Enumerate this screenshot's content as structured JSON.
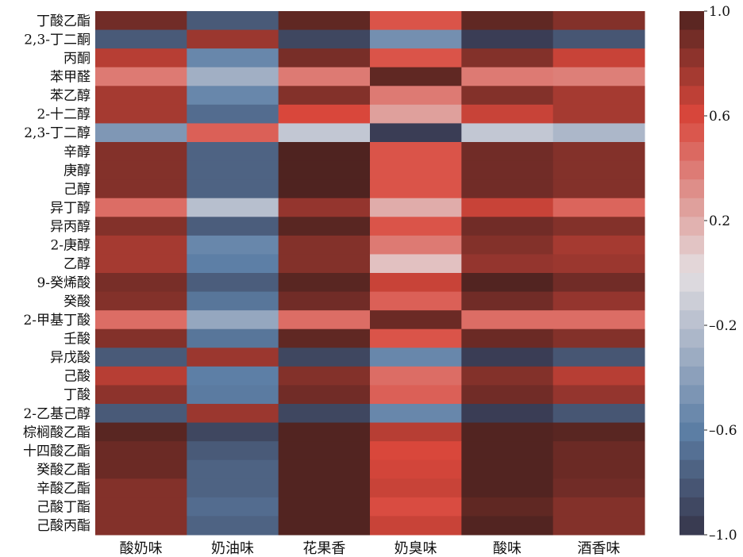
{
  "chart_data": {
    "type": "heatmap",
    "rows": [
      "丁酸乙酯",
      "2,3-丁二酮",
      "丙酮",
      "苯甲醛",
      "苯乙醇",
      "2-十二醇",
      "2,3-丁二醇",
      "辛醇",
      "庚醇",
      "己醇",
      "异丁醇",
      "异丙醇",
      "2-庚醇",
      "乙醇",
      "9-癸烯酸",
      "癸酸",
      "2-甲基丁酸",
      "壬酸",
      "异戊酸",
      "己酸",
      "丁酸",
      "2-乙基己醇",
      "棕榈酸乙酯",
      "十四酸乙酯",
      "癸酸乙酯",
      "辛酸乙酯",
      "己酸丁酯",
      "己酸丙酯"
    ],
    "columns": [
      "酸奶味",
      "奶油味",
      "花果香",
      "奶臭味",
      "酸味",
      "酒香味"
    ],
    "values": [
      [
        0.9,
        -0.8,
        0.95,
        0.55,
        0.95,
        0.85
      ],
      [
        -0.8,
        0.78,
        -0.9,
        -0.5,
        -0.95,
        -0.82
      ],
      [
        0.7,
        -0.55,
        0.88,
        0.55,
        0.85,
        0.65
      ],
      [
        0.4,
        -0.3,
        0.4,
        0.95,
        0.4,
        0.38
      ],
      [
        0.75,
        -0.55,
        0.85,
        0.4,
        0.85,
        0.75
      ],
      [
        0.75,
        -0.7,
        0.6,
        0.25,
        0.65,
        0.75
      ],
      [
        -0.45,
        0.5,
        -0.15,
        -0.95,
        -0.15,
        -0.25
      ],
      [
        0.85,
        -0.75,
        1.0,
        0.55,
        0.9,
        0.85
      ],
      [
        0.85,
        -0.75,
        1.0,
        0.55,
        0.9,
        0.85
      ],
      [
        0.85,
        -0.75,
        1.0,
        0.55,
        0.9,
        0.85
      ],
      [
        0.45,
        -0.2,
        0.8,
        0.2,
        0.65,
        0.48
      ],
      [
        0.85,
        -0.78,
        0.97,
        0.55,
        0.9,
        0.85
      ],
      [
        0.75,
        -0.55,
        0.85,
        0.4,
        0.85,
        0.75
      ],
      [
        0.75,
        -0.6,
        0.85,
        0.12,
        0.8,
        0.78
      ],
      [
        0.88,
        -0.78,
        0.97,
        0.65,
        0.99,
        0.9
      ],
      [
        0.85,
        -0.65,
        0.9,
        0.5,
        0.9,
        0.8
      ],
      [
        0.45,
        -0.35,
        0.45,
        0.92,
        0.45,
        0.45
      ],
      [
        0.85,
        -0.65,
        0.95,
        0.55,
        0.92,
        0.85
      ],
      [
        -0.8,
        0.78,
        -0.9,
        -0.55,
        -0.95,
        -0.82
      ],
      [
        0.7,
        -0.6,
        0.85,
        0.45,
        0.85,
        0.7
      ],
      [
        0.82,
        -0.62,
        0.9,
        0.5,
        0.9,
        0.8
      ],
      [
        -0.8,
        0.78,
        -0.9,
        -0.55,
        -0.95,
        -0.82
      ],
      [
        0.97,
        -0.9,
        0.99,
        0.7,
        0.99,
        0.97
      ],
      [
        0.92,
        -0.8,
        0.99,
        0.6,
        0.99,
        0.92
      ],
      [
        0.92,
        -0.75,
        0.99,
        0.62,
        0.99,
        0.92
      ],
      [
        0.85,
        -0.75,
        0.99,
        0.65,
        0.99,
        0.9
      ],
      [
        0.85,
        -0.7,
        0.99,
        0.58,
        0.95,
        0.85
      ],
      [
        0.85,
        -0.75,
        0.99,
        0.65,
        0.99,
        0.85
      ]
    ],
    "colorbar": {
      "range": [
        -1.0,
        1.0
      ],
      "ticks": [
        1.0,
        0.6,
        0.2,
        -0.2,
        -0.6,
        -1.0
      ],
      "tick_labels": [
        "1.0",
        "0.6",
        "0.2",
        "–0.2",
        "–0.6",
        "–1.0"
      ]
    },
    "colormap": {
      "low": "#353449",
      "mid_low": "#5d7fa6",
      "center": "#e4dfe2",
      "mid_high": "#d9473b",
      "high": "#4f2320"
    }
  }
}
